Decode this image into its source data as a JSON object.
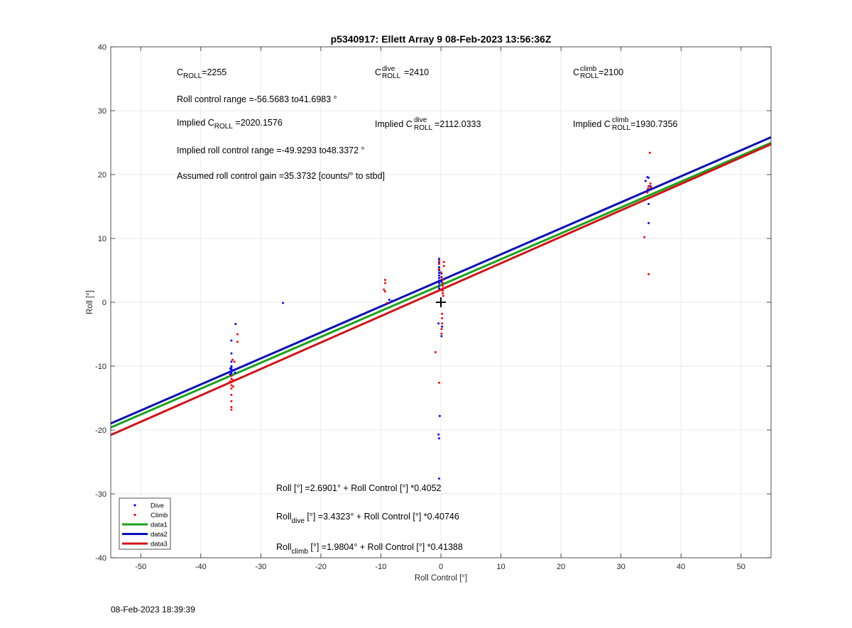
{
  "chart_data": {
    "type": "scatter",
    "title": "p5340917: Ellett Array 9 08-Feb-2023 13:56:36Z",
    "xlabel": "Roll Control [°]",
    "ylabel": "Roll [°]",
    "xlim": [
      -55,
      55
    ],
    "ylim": [
      -40,
      40
    ],
    "xticks": [
      -50,
      -40,
      -30,
      -20,
      -10,
      0,
      10,
      20,
      30,
      40,
      50
    ],
    "yticks": [
      -40,
      -30,
      -20,
      -10,
      0,
      10,
      20,
      30,
      40
    ],
    "grid": true,
    "legend_position": "bottom-left",
    "colors": {
      "dive": "#0000ff",
      "climb": "#ff0000",
      "data1": "#1aa31a",
      "data2": "#0a0fb4",
      "data3": "#d0141a"
    },
    "series": [
      {
        "name": "Dive",
        "kind": "points",
        "color": "#0000ff",
        "points": [
          [
            -34.9,
            -6.0
          ],
          [
            -34.9,
            -8.0
          ],
          [
            -34.9,
            -9.3
          ],
          [
            -34.9,
            -10.0
          ],
          [
            -34.9,
            -10.2
          ],
          [
            -34.9,
            -10.5
          ],
          [
            -34.9,
            -10.8
          ],
          [
            -34.9,
            -11.1
          ],
          [
            -34.9,
            -11.5
          ],
          [
            -34.9,
            -12.0
          ],
          [
            -35.1,
            -10.4
          ],
          [
            -34.7,
            -10.7
          ],
          [
            -35.1,
            -11.3
          ],
          [
            -34.5,
            -10.6
          ],
          [
            -34.3,
            -11.0
          ],
          [
            -34.2,
            -3.4
          ],
          [
            -26.3,
            -0.1
          ],
          [
            -8.6,
            0.4
          ],
          [
            -8.2,
            0.2
          ],
          [
            -0.3,
            6.8
          ],
          [
            -0.3,
            6.2
          ],
          [
            -0.3,
            5.5
          ],
          [
            -0.3,
            5.0
          ],
          [
            -0.3,
            4.6
          ],
          [
            -0.3,
            4.2
          ],
          [
            -0.3,
            3.8
          ],
          [
            -0.3,
            3.4
          ],
          [
            -0.3,
            3.0
          ],
          [
            -0.3,
            2.6
          ],
          [
            -0.3,
            2.2
          ],
          [
            -0.4,
            -3.3
          ],
          [
            -0.2,
            -17.8
          ],
          [
            -0.4,
            -20.7
          ],
          [
            -0.3,
            -21.3
          ],
          [
            -0.3,
            -27.6
          ],
          [
            0.2,
            -3.8
          ],
          [
            0.1,
            -5.3
          ],
          [
            0.1,
            4.5
          ],
          [
            0.1,
            3.9
          ],
          [
            0.1,
            3.2
          ],
          [
            34.1,
            19.0
          ],
          [
            34.4,
            19.6
          ],
          [
            34.6,
            19.5
          ],
          [
            34.4,
            17.5
          ],
          [
            34.6,
            15.4
          ],
          [
            34.6,
            12.4
          ],
          [
            34.9,
            17.8
          ],
          [
            34.9,
            18.2
          ]
        ]
      },
      {
        "name": "Climb",
        "kind": "points",
        "color": "#ff0000",
        "points": [
          [
            -34.9,
            -11.5
          ],
          [
            -34.9,
            -12.0
          ],
          [
            -34.9,
            -12.5
          ],
          [
            -34.9,
            -13.0
          ],
          [
            -34.9,
            -13.5
          ],
          [
            -34.9,
            -14.5
          ],
          [
            -34.9,
            -15.5
          ],
          [
            -34.9,
            -16.4
          ],
          [
            -34.9,
            -16.8
          ],
          [
            -34.6,
            -13.2
          ],
          [
            -34.6,
            -12.2
          ],
          [
            -34.7,
            -9.0
          ],
          [
            -34.4,
            -9.3
          ],
          [
            -33.9,
            -5.0
          ],
          [
            -33.9,
            -6.2
          ],
          [
            -35.1,
            -12.4
          ],
          [
            -9.3,
            3.5
          ],
          [
            -9.3,
            3.0
          ],
          [
            -9.5,
            2.0
          ],
          [
            -9.3,
            1.7
          ],
          [
            -9.0,
            -0.1
          ],
          [
            -0.9,
            -7.8
          ],
          [
            -0.3,
            -12.6
          ],
          [
            -0.3,
            6.5
          ],
          [
            -0.3,
            6.0
          ],
          [
            -0.3,
            5.2
          ],
          [
            0.0,
            4.7
          ],
          [
            0.1,
            4.0
          ],
          [
            0.3,
            3.5
          ],
          [
            0.3,
            3.0
          ],
          [
            0.3,
            2.6
          ],
          [
            0.3,
            2.2
          ],
          [
            0.3,
            1.8
          ],
          [
            0.3,
            1.4
          ],
          [
            0.4,
            1.0
          ],
          [
            0.2,
            -1.8
          ],
          [
            0.2,
            -2.5
          ],
          [
            0.2,
            -3.3
          ],
          [
            0.1,
            -4.2
          ],
          [
            0.1,
            -4.9
          ],
          [
            0.5,
            6.3
          ],
          [
            0.5,
            5.7
          ],
          [
            33.9,
            10.2
          ],
          [
            34.4,
            17.2
          ],
          [
            34.5,
            17.8
          ],
          [
            34.6,
            18.2
          ],
          [
            34.9,
            18.6
          ],
          [
            34.8,
            23.4
          ],
          [
            34.6,
            4.4
          ],
          [
            35.0,
            18.0
          ]
        ]
      },
      {
        "name": "data1",
        "kind": "line",
        "color": "#1aa31a",
        "intercept": 2.6901,
        "slope": 0.4052
      },
      {
        "name": "data2",
        "kind": "line",
        "color": "#0a0fb4",
        "intercept": 3.4323,
        "slope": 0.40746
      },
      {
        "name": "data3",
        "kind": "line",
        "color": "#d0141a",
        "intercept": 1.9804,
        "slope": 0.41388
      }
    ],
    "marker": {
      "name": "origin-plus-marker",
      "x": 0,
      "y": 0
    },
    "annotations": {
      "c_roll": {
        "base": "C",
        "sub": "ROLL",
        "value": "=2255"
      },
      "c_roll_dive": {
        "base": "C",
        "sup": "dive",
        "sub": "ROLL",
        "value": " =2410"
      },
      "c_roll_climb": {
        "base": "C",
        "sup": "climb",
        "sub": "ROLL",
        "value": " =2100"
      },
      "roll_range": "Roll control range =-56.5683 to41.6983 °",
      "implied_c_roll": {
        "pre": "Implied C",
        "sub": "ROLL",
        "value": " =2020.1576"
      },
      "implied_c_roll_dive": {
        "pre": "Implied C",
        "sup": "dive",
        "sub": "ROLL",
        "value": " =2112.0333"
      },
      "implied_c_roll_climb": {
        "pre": "Implied C",
        "sup": "climb",
        "sub": "ROLL",
        "value": " =1930.7356"
      },
      "implied_range": "Implied roll control range =-49.9293 to48.3372 °",
      "gain": "Assumed roll control gain =35.3732 [counts/° to stbd]",
      "eq_all": "Roll [°] =2.6901° + Roll Control [°] *0.4052",
      "eq_dive": {
        "pre": "Roll",
        "sub": "dive",
        "post": " [°] =3.4323° + Roll Control [°] *0.40746"
      },
      "eq_climb": {
        "pre": "Roll",
        "sub": "climb",
        "post": " [°] =1.9804° + Roll Control [°] *0.41388"
      }
    }
  },
  "timestamp": "08-Feb-2023 18:39:39"
}
